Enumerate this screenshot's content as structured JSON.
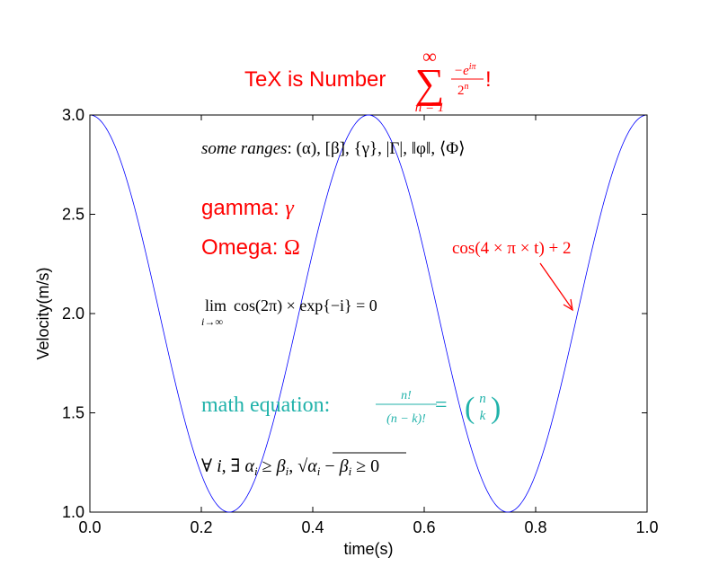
{
  "chart_data": {
    "type": "line",
    "title": {
      "prefix": "TeX is Number ",
      "sum_symbol": "∑",
      "sum_upper": "∞",
      "sum_lower": "n = 1",
      "numerator": "−e",
      "numerator_exp": "iπ",
      "denominator": "2",
      "denominator_exp": "n",
      "suffix": "!"
    },
    "xlabel": "time(s)",
    "ylabel": "Velocity(m/s)",
    "xlim": [
      0.0,
      1.0
    ],
    "ylim": [
      1.0,
      3.0
    ],
    "x_ticks": [
      "0.0",
      "0.2",
      "0.4",
      "0.6",
      "0.8",
      "1.0"
    ],
    "y_ticks": [
      "1.0",
      "1.5",
      "2.0",
      "2.5",
      "3.0"
    ],
    "grid": false,
    "series": [
      {
        "expression": "cos(4πt) + 2",
        "x": [
          0.0,
          0.025,
          0.05,
          0.075,
          0.1,
          0.125,
          0.15,
          0.175,
          0.2,
          0.225,
          0.25,
          0.275,
          0.3,
          0.325,
          0.35,
          0.375,
          0.4,
          0.425,
          0.45,
          0.475,
          0.5,
          0.525,
          0.55,
          0.575,
          0.6,
          0.625,
          0.65,
          0.675,
          0.7,
          0.725,
          0.75,
          0.775,
          0.8,
          0.825,
          0.85,
          0.875,
          0.9,
          0.925,
          0.95,
          0.975,
          1.0
        ],
        "y": [
          3.0,
          2.951,
          2.809,
          2.588,
          2.309,
          2.0,
          1.691,
          1.412,
          1.191,
          1.049,
          1.0,
          1.049,
          1.191,
          1.412,
          1.691,
          2.0,
          2.309,
          2.588,
          2.809,
          2.951,
          3.0,
          2.951,
          2.809,
          2.588,
          2.309,
          2.0,
          1.691,
          1.412,
          1.191,
          1.049,
          1.0,
          1.049,
          1.191,
          1.412,
          1.691,
          2.0,
          2.309,
          2.588,
          2.809,
          2.951,
          3.0
        ]
      }
    ],
    "annotations": {
      "ranges": {
        "label": "some ranges",
        "sep": ": ",
        "content": "(α), [β], {γ}, |Γ|, ‖φ‖, ⟨Φ⟩",
        "x": 0.2,
        "y": 2.8
      },
      "gamma": {
        "label": "gamma: ",
        "symbol": "γ",
        "x": 0.2,
        "y": 2.5
      },
      "omega": {
        "label": "Omega: ",
        "symbol": "Ω",
        "x": 0.2,
        "y": 2.3
      },
      "limit": {
        "lim": "lim",
        "sub": "i→∞",
        "expr": "cos(2π) × exp{−i} = 0",
        "x": 0.2,
        "y": 2.0
      },
      "math_equation": {
        "label": "math equation",
        "sep": ": ",
        "frac_num": "n!",
        "frac_den": "(n − k)!",
        "eq": " = ",
        "binom_top": "n",
        "binom_bottom": "k",
        "x": 0.2,
        "y": 1.5
      },
      "forall": {
        "prefix": "∀ ",
        "var_i": "i",
        "mid": ", ∃ ",
        "alpha": "α",
        "ge": " ≥ ",
        "beta": "β",
        "sub_i": "i",
        "sqrt": "√",
        "tail": " ≥ 0",
        "x": 0.2,
        "y": 1.2
      },
      "arrow": {
        "text": "cos(4 × π × t) + 2",
        "text_xy": [
          0.65,
          2.3
        ],
        "point_xy": [
          0.875,
          2.0
        ]
      }
    },
    "colors": {
      "line": "#0000ff",
      "title": "#ff0000",
      "gamma_omega": "#ff0000",
      "arrow": "#ff0000",
      "equation": "#20b2aa",
      "text": "#000000"
    }
  }
}
